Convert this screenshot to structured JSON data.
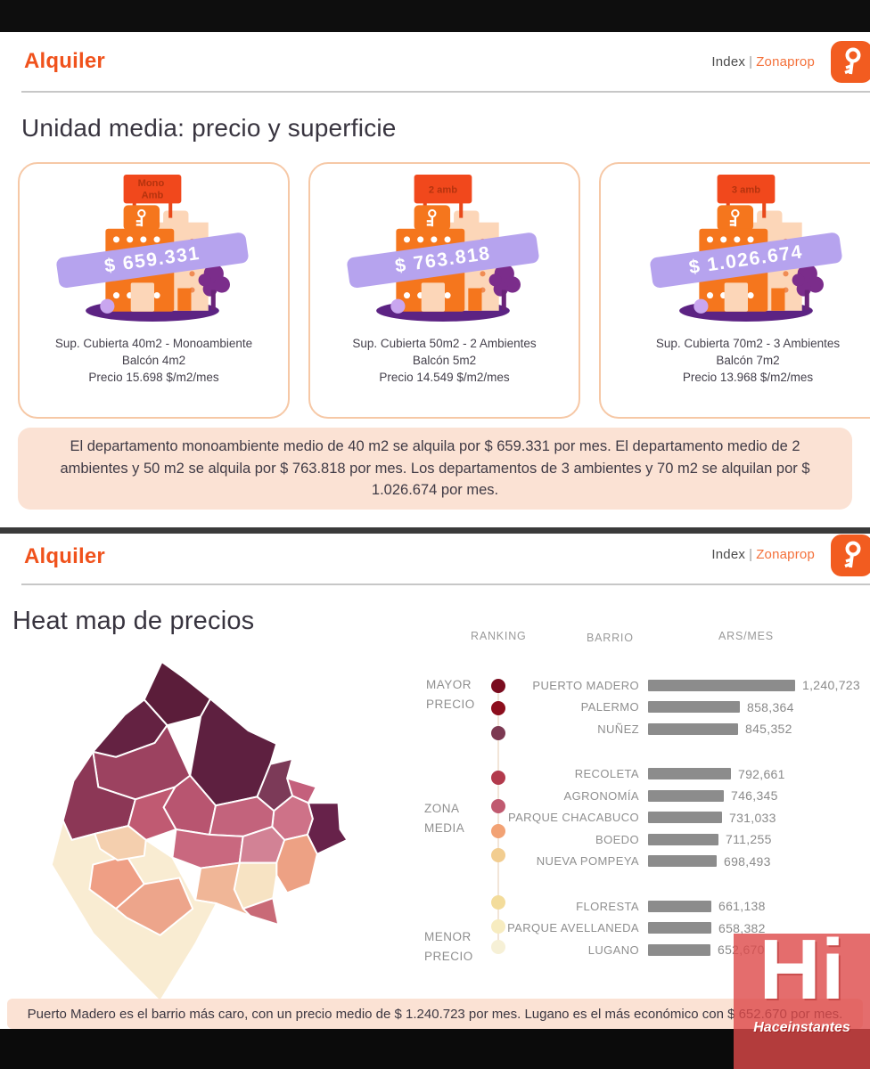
{
  "brand": {
    "title": "Alquiler",
    "index_label": "Index",
    "separator": "|",
    "site": "Zonaprop",
    "accent_color": "#f0521c"
  },
  "section1": {
    "heading": "Unidad media: precio y superficie",
    "cards": [
      {
        "flag_lines": [
          "Mono",
          "Amb"
        ],
        "price": "$ 659.331",
        "caption_line1": "Sup. Cubierta 40m2 - Monoambiente",
        "caption_line2": "Balcón 4m2",
        "caption_line3": "Precio 15.698 $/m2/mes"
      },
      {
        "flag_lines": [
          "2 amb"
        ],
        "price": "$ 763.818",
        "caption_line1": "Sup. Cubierta 50m2 - 2 Ambientes",
        "caption_line2": "Balcón 5m2",
        "caption_line3": "Precio 14.549 $/m2/mes"
      },
      {
        "flag_lines": [
          "3 amb"
        ],
        "price": "$ 1.026.674",
        "caption_line1": "Sup. Cubierta 70m2 - 3 Ambientes",
        "caption_line2": "Balcón 7m2",
        "caption_line3": "Precio 13.968 $/m2/mes"
      }
    ],
    "summary": "El departamento monoambiente medio de 40 m2 se alquila por $ 659.331 por mes. El departamento medio de 2 ambientes y 50 m2 se alquila por $ 763.818 por mes. Los departamentos de 3 ambientes y 70 m2 se alquilan por $ 1.026.674 por mes."
  },
  "section2": {
    "heading": "Heat map de precios",
    "columns": {
      "ranking": "RANKING",
      "barrio": "BARRIO",
      "ars": "ARS/MES"
    },
    "legend": {
      "groups": [
        {
          "lines": [
            "MAYOR",
            "PRECIO"
          ]
        },
        {
          "lines": [
            "ZONA",
            "MEDIA"
          ]
        },
        {
          "lines": [
            "MENOR",
            "PRECIO"
          ]
        }
      ],
      "dot_colors": [
        "#7a0c1f",
        "#8c0e1d",
        "#7c3952",
        "#b23a4c",
        "#c05a70",
        "#f2a274",
        "#f2cd90",
        "#f3dc9b",
        "#f7ecc0",
        "#f6f0d6"
      ]
    },
    "summary": "Puerto Madero es el barrio más caro, con un precio medio de $ 1.240.723 por mes. Lugano es el más económico con $ 652.670 por mes."
  },
  "chart_data": {
    "type": "bar",
    "orientation": "horizontal",
    "title": "Heat map de precios",
    "unit": "ARS/MES",
    "bar_color": "#8c8c8c",
    "categories": [
      "PUERTO MADERO",
      "PALERMO",
      "NUÑEZ",
      "RECOLETA",
      "AGRONOMÍA",
      "PARQUE CHACABUCO",
      "BOEDO",
      "NUEVA POMPEYA",
      "FLORESTA",
      "PARQUE AVELLANEDA",
      "LUGANO"
    ],
    "values": [
      1240723,
      858364,
      845352,
      792661,
      746345,
      731033,
      711255,
      698493,
      661138,
      658382,
      652670
    ],
    "value_labels": [
      "1,240,723",
      "858,364",
      "845,352",
      "792,661",
      "746,345",
      "731,033",
      "711,255",
      "698,493",
      "661,138",
      "658,382",
      "652,670"
    ],
    "groups": [
      "mayor",
      "mayor",
      "mayor",
      "media",
      "media",
      "media",
      "media",
      "media",
      "menor",
      "menor",
      "menor"
    ],
    "heatmap_palette": [
      "#5b1d3a",
      "#67224a",
      "#7c3a58",
      "#9c4260",
      "#b85570",
      "#c3637c",
      "#ce7288",
      "#eda184",
      "#f0b697",
      "#f4cfae",
      "#f7e3c3",
      "#f9ecd2"
    ]
  },
  "watermark": {
    "big": "Hi",
    "small": "Haceinstantes"
  }
}
